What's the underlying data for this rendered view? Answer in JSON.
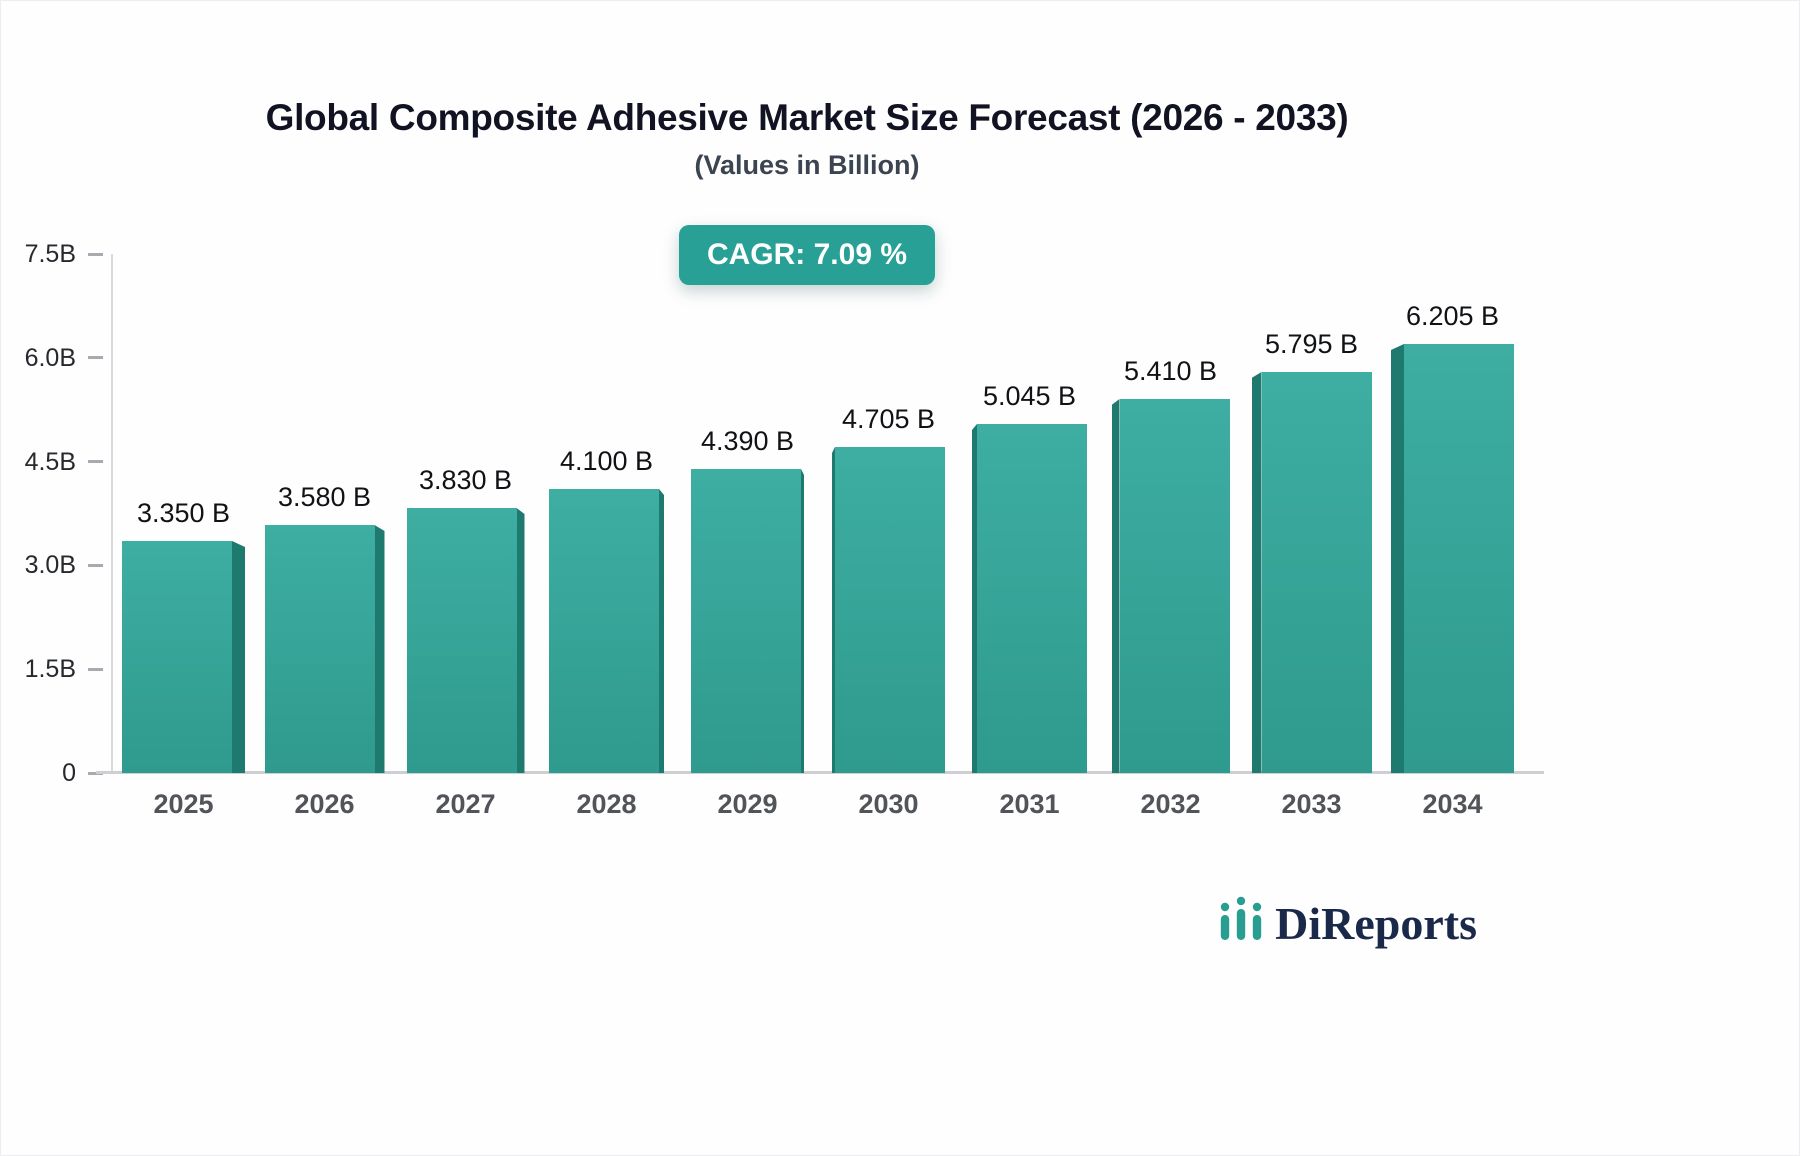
{
  "chart_data": {
    "type": "bar",
    "title": "Global Composite Adhesive Market Size Forecast (2026 - 2033)",
    "subtitle": "(Values in Billion)",
    "badge": "CAGR: 7.09 %",
    "categories": [
      "2025",
      "2026",
      "2027",
      "2028",
      "2029",
      "2030",
      "2031",
      "2032",
      "2033",
      "2034"
    ],
    "values": [
      3.35,
      3.58,
      3.83,
      4.1,
      4.39,
      4.705,
      5.045,
      5.41,
      5.795,
      6.205
    ],
    "value_labels": [
      "3.350 B",
      "3.580 B",
      "3.830 B",
      "4.100 B",
      "4.390 B",
      "4.705 B",
      "5.045 B",
      "5.410 B",
      "5.795 B",
      "6.205 B"
    ],
    "yticks": [
      "7.5B",
      "6.0B",
      "4.5B",
      "3.0B",
      "1.5B",
      "0"
    ],
    "ylim": [
      0,
      7.5
    ],
    "xlabel": "",
    "ylabel": "",
    "grid": false,
    "legend": "none",
    "bar_color": "#35a79b",
    "bar_side_color": "#1e7a6f",
    "badge_bg": "#28a096"
  },
  "logo": {
    "text": "DiReports",
    "icon_color": "#2a9d93",
    "text_color": "#1a2949"
  }
}
